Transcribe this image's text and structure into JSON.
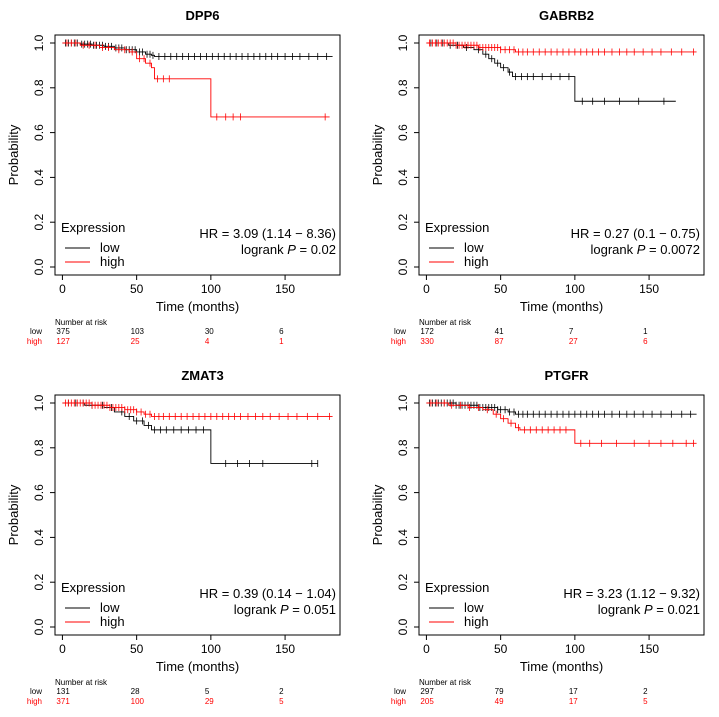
{
  "legend_title": "Expression",
  "legend_low": "low",
  "legend_high": "high",
  "ylabel": "Probability",
  "xlabel": "Time (months)",
  "risk_header": "Number at risk",
  "risk_label_low": "low",
  "risk_label_high": "high",
  "logrank_prefix": "logrank",
  "p_symbol": "P",
  "colors": {
    "low": "#000000",
    "high": "#ff0000",
    "axis": "#000000"
  },
  "chart_data": [
    {
      "type": "line",
      "title": "DPP6",
      "xlabel": "Time (months)",
      "ylabel": "Probability",
      "xlim": [
        0,
        180
      ],
      "ylim": [
        0,
        1
      ],
      "x_ticks": [
        0,
        50,
        100,
        150
      ],
      "y_ticks": [
        0.0,
        0.2,
        0.4,
        0.6,
        0.8,
        1.0
      ],
      "hr_text": "HR = 3.09 (1.14 − 8.36)",
      "p_value": "= 0.02",
      "series": [
        {
          "name": "low",
          "steps": [
            [
              0,
              1.0
            ],
            [
              12,
              0.995
            ],
            [
              20,
              0.99
            ],
            [
              28,
              0.985
            ],
            [
              35,
              0.978
            ],
            [
              42,
              0.97
            ],
            [
              50,
              0.96
            ],
            [
              56,
              0.95
            ],
            [
              60,
              0.945
            ],
            [
              62,
              0.94
            ],
            [
              182,
              0.94
            ]
          ],
          "censors": [
            2,
            4,
            6,
            8,
            10,
            13,
            15,
            17,
            19,
            21,
            23,
            25,
            27,
            29,
            31,
            33,
            36,
            38,
            40,
            43,
            45,
            47,
            49,
            52,
            54,
            57,
            59,
            61,
            65,
            69,
            73,
            77,
            81,
            85,
            89,
            93,
            97,
            101,
            105,
            109,
            113,
            117,
            121,
            125,
            129,
            133,
            137,
            141,
            145,
            150,
            155,
            160,
            166,
            172,
            178
          ]
        },
        {
          "name": "high",
          "steps": [
            [
              0,
              1.0
            ],
            [
              12,
              0.99
            ],
            [
              25,
              0.98
            ],
            [
              35,
              0.97
            ],
            [
              45,
              0.96
            ],
            [
              50,
              0.93
            ],
            [
              56,
              0.91
            ],
            [
              60,
              0.89
            ],
            [
              62,
              0.84
            ],
            [
              100,
              0.84
            ],
            [
              100,
              0.67
            ],
            [
              180,
              0.67
            ]
          ],
          "censors": [
            3,
            6,
            9,
            14,
            18,
            22,
            27,
            31,
            38,
            42,
            47,
            52,
            55,
            59,
            64,
            68,
            72,
            104,
            110,
            115,
            120,
            177
          ]
        }
      ],
      "risk_times": [
        0,
        50,
        100,
        150
      ],
      "risk_low": [
        375,
        103,
        30,
        6
      ],
      "risk_high": [
        127,
        25,
        4,
        1
      ]
    },
    {
      "type": "line",
      "title": "GABRB2",
      "xlabel": "Time (months)",
      "ylabel": "Probability",
      "xlim": [
        0,
        180
      ],
      "ylim": [
        0,
        1
      ],
      "x_ticks": [
        0,
        50,
        100,
        150
      ],
      "y_ticks": [
        0.0,
        0.2,
        0.4,
        0.6,
        0.8,
        1.0
      ],
      "hr_text": "HR = 0.27 (0.1 − 0.75)",
      "p_value": "= 0.0072",
      "series": [
        {
          "name": "low",
          "steps": [
            [
              0,
              1.0
            ],
            [
              15,
              0.99
            ],
            [
              25,
              0.98
            ],
            [
              32,
              0.97
            ],
            [
              38,
              0.95
            ],
            [
              42,
              0.93
            ],
            [
              46,
              0.91
            ],
            [
              50,
              0.89
            ],
            [
              55,
              0.87
            ],
            [
              58,
              0.85
            ],
            [
              100,
              0.85
            ],
            [
              100,
              0.74
            ],
            [
              168,
              0.74
            ]
          ],
          "censors": [
            3,
            7,
            11,
            16,
            21,
            27,
            35,
            40,
            44,
            48,
            52,
            56,
            60,
            64,
            68,
            72,
            78,
            84,
            90,
            96,
            105,
            112,
            120,
            130,
            143,
            160
          ]
        },
        {
          "name": "high",
          "steps": [
            [
              0,
              1.0
            ],
            [
              20,
              0.99
            ],
            [
              35,
              0.98
            ],
            [
              50,
              0.97
            ],
            [
              60,
              0.96
            ],
            [
              182,
              0.96
            ]
          ],
          "censors": [
            2,
            4,
            6,
            8,
            10,
            12,
            14,
            16,
            18,
            20,
            22,
            24,
            26,
            28,
            30,
            32,
            34,
            36,
            38,
            40,
            42,
            44,
            46,
            48,
            50,
            53,
            56,
            59,
            62,
            65,
            68,
            72,
            76,
            80,
            84,
            88,
            92,
            96,
            100,
            104,
            108,
            112,
            116,
            120,
            125,
            130,
            135,
            140,
            146,
            152,
            158,
            165,
            172,
            180
          ]
        }
      ],
      "risk_times": [
        0,
        50,
        100,
        150
      ],
      "risk_low": [
        172,
        41,
        7,
        1
      ],
      "risk_high": [
        330,
        87,
        27,
        6
      ]
    },
    {
      "type": "line",
      "title": "ZMAT3",
      "xlabel": "Time (months)",
      "ylabel": "Probability",
      "xlim": [
        0,
        180
      ],
      "ylim": [
        0,
        1
      ],
      "x_ticks": [
        0,
        50,
        100,
        150
      ],
      "y_ticks": [
        0.0,
        0.2,
        0.4,
        0.6,
        0.8,
        1.0
      ],
      "hr_text": "HR = 0.39 (0.14 − 1.04)",
      "p_value": "= 0.051",
      "series": [
        {
          "name": "low",
          "steps": [
            [
              0,
              1.0
            ],
            [
              15,
              0.99
            ],
            [
              28,
              0.98
            ],
            [
              35,
              0.96
            ],
            [
              42,
              0.94
            ],
            [
              48,
              0.92
            ],
            [
              55,
              0.9
            ],
            [
              60,
              0.88
            ],
            [
              100,
              0.88
            ],
            [
              100,
              0.73
            ],
            [
              172,
              0.73
            ]
          ],
          "censors": [
            4,
            9,
            14,
            20,
            27,
            33,
            40,
            45,
            50,
            54,
            58,
            62,
            66,
            70,
            75,
            80,
            85,
            90,
            95,
            110,
            118,
            126,
            135,
            168,
            172
          ]
        },
        {
          "name": "high",
          "steps": [
            [
              0,
              1.0
            ],
            [
              20,
              0.99
            ],
            [
              32,
              0.98
            ],
            [
              42,
              0.97
            ],
            [
              50,
              0.96
            ],
            [
              55,
              0.95
            ],
            [
              60,
              0.94
            ],
            [
              182,
              0.94
            ]
          ],
          "censors": [
            2,
            4,
            6,
            8,
            10,
            12,
            14,
            16,
            18,
            20,
            22,
            24,
            26,
            28,
            30,
            32,
            34,
            36,
            38,
            40,
            42,
            44,
            46,
            48,
            50,
            53,
            56,
            59,
            62,
            65,
            68,
            72,
            76,
            80,
            84,
            88,
            92,
            96,
            100,
            104,
            108,
            112,
            116,
            120,
            125,
            130,
            135,
            140,
            146,
            152,
            158,
            165,
            172,
            180
          ]
        }
      ],
      "risk_times": [
        0,
        50,
        100,
        150
      ],
      "risk_low": [
        131,
        28,
        5,
        2
      ],
      "risk_high": [
        371,
        100,
        29,
        5
      ]
    },
    {
      "type": "line",
      "title": "PTGFR",
      "xlabel": "Time (months)",
      "ylabel": "Probability",
      "xlim": [
        0,
        180
      ],
      "ylim": [
        0,
        1
      ],
      "x_ticks": [
        0,
        50,
        100,
        150
      ],
      "y_ticks": [
        0.0,
        0.2,
        0.4,
        0.6,
        0.8,
        1.0
      ],
      "hr_text": "HR = 3.23 (1.12 − 9.32)",
      "p_value": "= 0.021",
      "series": [
        {
          "name": "low",
          "steps": [
            [
              0,
              1.0
            ],
            [
              20,
              0.99
            ],
            [
              35,
              0.98
            ],
            [
              48,
              0.97
            ],
            [
              55,
              0.96
            ],
            [
              60,
              0.95
            ],
            [
              182,
              0.95
            ]
          ],
          "censors": [
            2,
            4,
            6,
            8,
            10,
            12,
            14,
            16,
            18,
            20,
            22,
            24,
            26,
            28,
            30,
            32,
            34,
            36,
            38,
            40,
            42,
            44,
            46,
            48,
            50,
            53,
            56,
            59,
            62,
            65,
            68,
            72,
            76,
            80,
            84,
            88,
            92,
            96,
            100,
            104,
            108,
            112,
            116,
            120,
            125,
            130,
            135,
            140,
            146,
            152,
            158,
            165,
            172,
            178
          ]
        },
        {
          "name": "high",
          "steps": [
            [
              0,
              1.0
            ],
            [
              15,
              0.99
            ],
            [
              28,
              0.98
            ],
            [
              38,
              0.97
            ],
            [
              45,
              0.95
            ],
            [
              50,
              0.93
            ],
            [
              55,
              0.91
            ],
            [
              60,
              0.89
            ],
            [
              63,
              0.88
            ],
            [
              100,
              0.88
            ],
            [
              100,
              0.82
            ],
            [
              182,
              0.82
            ]
          ],
          "censors": [
            3,
            7,
            12,
            17,
            23,
            29,
            35,
            41,
            47,
            52,
            57,
            62,
            66,
            70,
            74,
            78,
            82,
            86,
            90,
            94,
            104,
            110,
            118,
            128,
            140,
            150,
            158,
            166,
            175,
            180
          ]
        }
      ],
      "risk_times": [
        0,
        50,
        100,
        150
      ],
      "risk_low": [
        297,
        79,
        17,
        2
      ],
      "risk_high": [
        205,
        49,
        17,
        5
      ]
    }
  ]
}
